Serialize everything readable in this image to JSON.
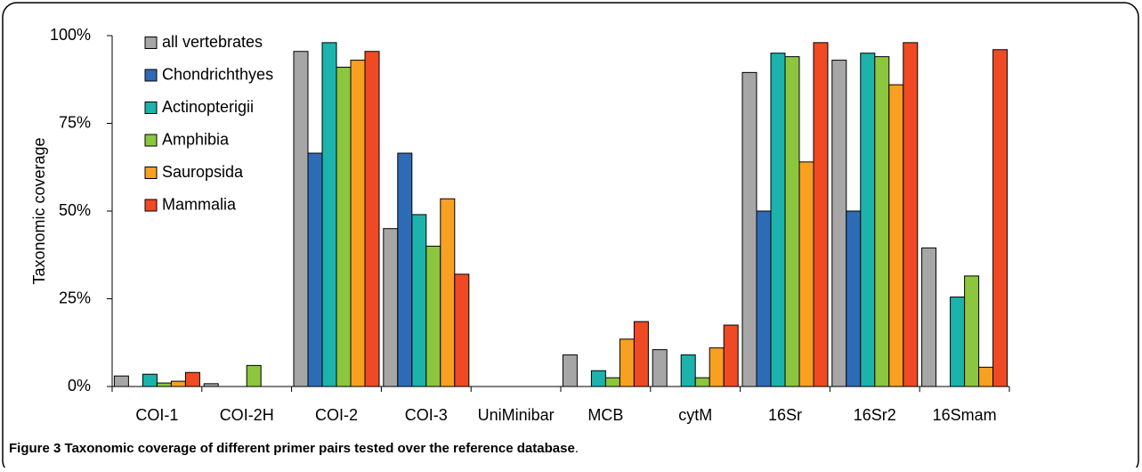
{
  "chart_data": {
    "type": "bar",
    "y_label": "Taxonomic coverage",
    "caption_label": "Figure 3",
    "caption": "Taxonomic coverage of different primer pairs tested over the reference database",
    "caption_end": ".",
    "categories": [
      "COI-1",
      "COI-2H",
      "COI-2",
      "COI-3",
      "UniMinibar",
      "MCB",
      "cytM",
      "16Sr",
      "16Sr2",
      "16Smam"
    ],
    "series": [
      {
        "name": "all vertebrates",
        "color": "#a6a6a6",
        "values": [
          3,
          0.8,
          95.5,
          45,
          0,
          9,
          10.5,
          89.5,
          93,
          39.5
        ]
      },
      {
        "name": "Chondrichthyes",
        "color": "#2e6bb5",
        "values": [
          0,
          0,
          66.5,
          66.5,
          0,
          0,
          0,
          50,
          50,
          0
        ]
      },
      {
        "name": "Actinopterigii",
        "color": "#1bb3ac",
        "values": [
          3.5,
          0,
          98,
          49,
          0,
          4.5,
          9,
          95,
          95,
          25.5
        ]
      },
      {
        "name": "Amphibia",
        "color": "#8cc63f",
        "values": [
          1,
          6,
          91,
          40,
          0,
          2.5,
          2.5,
          94,
          94,
          31.5
        ]
      },
      {
        "name": "Sauropsida",
        "color": "#f7a021",
        "values": [
          1.5,
          0,
          93,
          53.5,
          0,
          13.5,
          11,
          64,
          86,
          5.5
        ]
      },
      {
        "name": "Mammalia",
        "color": "#ef4a23",
        "values": [
          4,
          0,
          95.5,
          32,
          0,
          18.5,
          17.5,
          98,
          98,
          96
        ]
      }
    ],
    "ylim": [
      0,
      100
    ],
    "yticks": [
      {
        "value": 0,
        "label": "0%"
      },
      {
        "value": 25,
        "label": "25%"
      },
      {
        "value": 50,
        "label": "50%"
      },
      {
        "value": 75,
        "label": "75%"
      },
      {
        "value": 100,
        "label": "100%"
      }
    ],
    "legend": "top-left"
  }
}
